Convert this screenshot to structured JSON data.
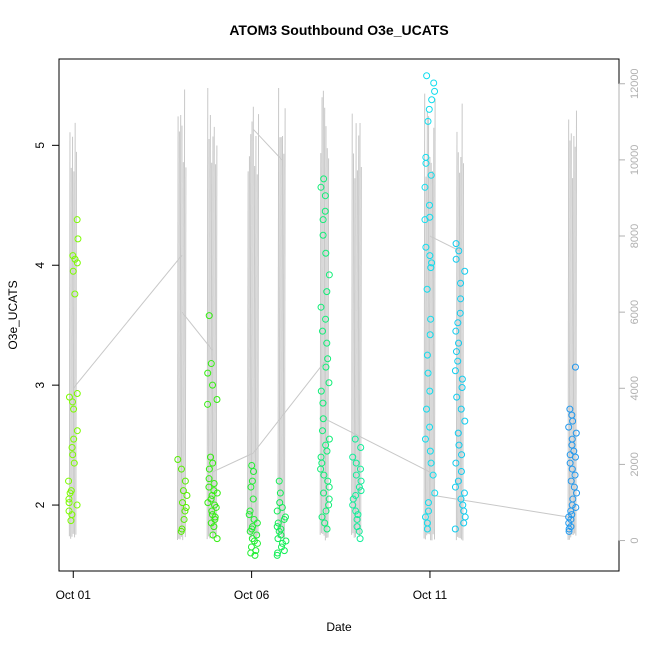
{
  "chart_data": {
    "type": "scatter",
    "title": "ATOM3 Southbound O3e_UCATS",
    "xlabel": "Date",
    "ylabel": "O3e_UCATS",
    "x_ticks": [
      {
        "label": "Oct 01",
        "day": 1
      },
      {
        "label": "Oct 06",
        "day": 6
      },
      {
        "label": "Oct 11",
        "day": 11
      }
    ],
    "xlim": [
      0.6,
      16.3
    ],
    "ylim": [
      1.45,
      5.72
    ],
    "y_ticks": [
      2,
      3,
      4,
      5
    ],
    "y_right_ticks": [
      0,
      2000,
      4000,
      6000,
      8000,
      10000,
      12000
    ],
    "y_right_lim": [
      -800,
      12650
    ],
    "altitude_series_color": "#c8c8c8",
    "right_axis_color": "#b0b0b0",
    "flights": [
      {
        "day": 1.0,
        "color": "#7cfc00",
        "o3e": [
          1.87,
          1.92,
          1.95,
          2.0,
          2.02,
          2.05,
          2.1,
          2.12,
          2.2,
          2.35,
          2.42,
          2.48,
          2.55,
          2.62,
          2.8,
          2.86,
          2.9,
          2.93,
          3.76,
          3.95,
          4.02,
          4.05,
          4.08,
          4.22,
          4.38
        ]
      },
      {
        "day": 4.05,
        "color": "#55ee00",
        "o3e": [
          1.78,
          1.8,
          1.88,
          1.95,
          1.98,
          2.02,
          2.08,
          2.12,
          2.2,
          2.3,
          2.38
        ]
      },
      {
        "day": 4.9,
        "color": "#33ee11",
        "o3e": [
          1.72,
          1.75,
          1.82,
          1.85,
          1.88,
          1.9,
          1.92,
          1.95,
          1.98,
          2.0,
          2.02,
          2.05,
          2.08,
          2.1,
          2.12,
          2.15,
          2.18,
          2.22,
          2.3,
          2.35,
          2.4,
          2.84,
          2.88,
          3.0,
          3.1,
          3.18,
          3.58
        ]
      },
      {
        "day": 6.05,
        "color": "#22ee33",
        "o3e": [
          1.58,
          1.6,
          1.62,
          1.65,
          1.68,
          1.7,
          1.72,
          1.75,
          1.78,
          1.8,
          1.82,
          1.85,
          1.88,
          1.92,
          1.95,
          2.05,
          2.15,
          2.2,
          2.28,
          2.33
        ]
      },
      {
        "day": 6.85,
        "color": "#11ee55",
        "o3e": [
          1.58,
          1.6,
          1.62,
          1.65,
          1.68,
          1.7,
          1.72,
          1.75,
          1.78,
          1.8,
          1.82,
          1.85,
          1.88,
          1.9,
          1.95,
          1.98,
          2.02,
          2.1,
          2.2
        ]
      },
      {
        "day": 8.05,
        "color": "#11ee77",
        "o3e": [
          1.8,
          1.85,
          1.9,
          1.95,
          2.0,
          2.05,
          2.1,
          2.15,
          2.2,
          2.25,
          2.3,
          2.35,
          2.4,
          2.45,
          2.5,
          2.55,
          2.62,
          2.72,
          2.85,
          2.95,
          3.02,
          3.15,
          3.22,
          3.35,
          3.45,
          3.55,
          3.65,
          3.78,
          3.92,
          4.1,
          4.25,
          4.38,
          4.45,
          4.58,
          4.65,
          4.72
        ]
      },
      {
        "day": 8.95,
        "color": "#11ee99",
        "o3e": [
          1.72,
          1.78,
          1.82,
          1.88,
          1.92,
          1.95,
          2.0,
          2.05,
          2.08,
          2.12,
          2.15,
          2.2,
          2.25,
          2.3,
          2.35,
          2.4,
          2.48,
          2.55
        ]
      },
      {
        "day": 11.0,
        "color": "#11ddee",
        "o3e": [
          1.8,
          1.85,
          1.9,
          1.95,
          2.02,
          2.1,
          2.25,
          2.35,
          2.45,
          2.55,
          2.65,
          2.8,
          2.95,
          3.1,
          3.25,
          3.42,
          3.55,
          3.8,
          3.98,
          4.02,
          4.08,
          4.15,
          4.38,
          4.4,
          4.5,
          4.65,
          4.75,
          4.85,
          4.9,
          5.2,
          5.3,
          5.38,
          5.45,
          5.52,
          5.58
        ]
      },
      {
        "day": 11.85,
        "color": "#11ccee",
        "o3e": [
          1.8,
          1.85,
          1.9,
          1.95,
          2.0,
          2.05,
          2.1,
          2.15,
          2.2,
          2.28,
          2.35,
          2.42,
          2.5,
          2.6,
          2.7,
          2.8,
          2.9,
          2.98,
          3.05,
          3.12,
          3.2,
          3.28,
          3.35,
          3.45,
          3.52,
          3.6,
          3.72,
          3.85,
          3.95,
          4.05,
          4.12,
          4.18
        ]
      },
      {
        "day": 15.0,
        "color": "#2299ee",
        "o3e": [
          1.78,
          1.8,
          1.82,
          1.85,
          1.88,
          1.9,
          1.92,
          1.95,
          1.98,
          2.0,
          2.05,
          2.1,
          2.15,
          2.2,
          2.25,
          2.3,
          2.35,
          2.4,
          2.42,
          2.45,
          2.5,
          2.55,
          2.6,
          2.65,
          2.7,
          2.75,
          2.8,
          3.15
        ]
      }
    ]
  }
}
